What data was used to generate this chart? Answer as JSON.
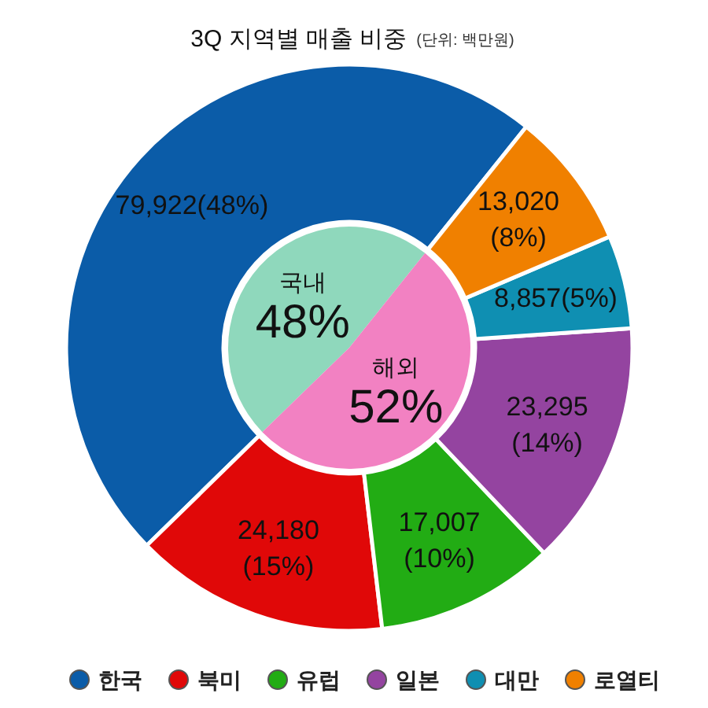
{
  "chart_data": [
    {
      "type": "donut",
      "title": "3Q 지역별 매출 비중",
      "subtitle": "(단위: 백만원)",
      "categories": [
        "한국",
        "북미",
        "유럽",
        "일본",
        "대만",
        "로열티"
      ],
      "values": [
        79922,
        24180,
        17007,
        23295,
        8857,
        13020
      ],
      "colors": [
        "#0b5ca8",
        "#e00808",
        "#22ac14",
        "#9444a0",
        "#0f8fb2",
        "#f08000"
      ],
      "value_labels": [
        "79,922(48%)",
        "24,180\n(15%)",
        "17,007\n(10%)",
        "23,295\n(14%)",
        "8,857(5%)",
        "13,020\n(8%)"
      ],
      "legend": "bottom"
    },
    {
      "type": "pie",
      "categories": [
        "국내",
        "해외"
      ],
      "values": [
        48,
        52
      ],
      "colors": [
        "#8fd8bc",
        "#f281c2"
      ],
      "value_labels": [
        "48%",
        "52%"
      ]
    }
  ]
}
